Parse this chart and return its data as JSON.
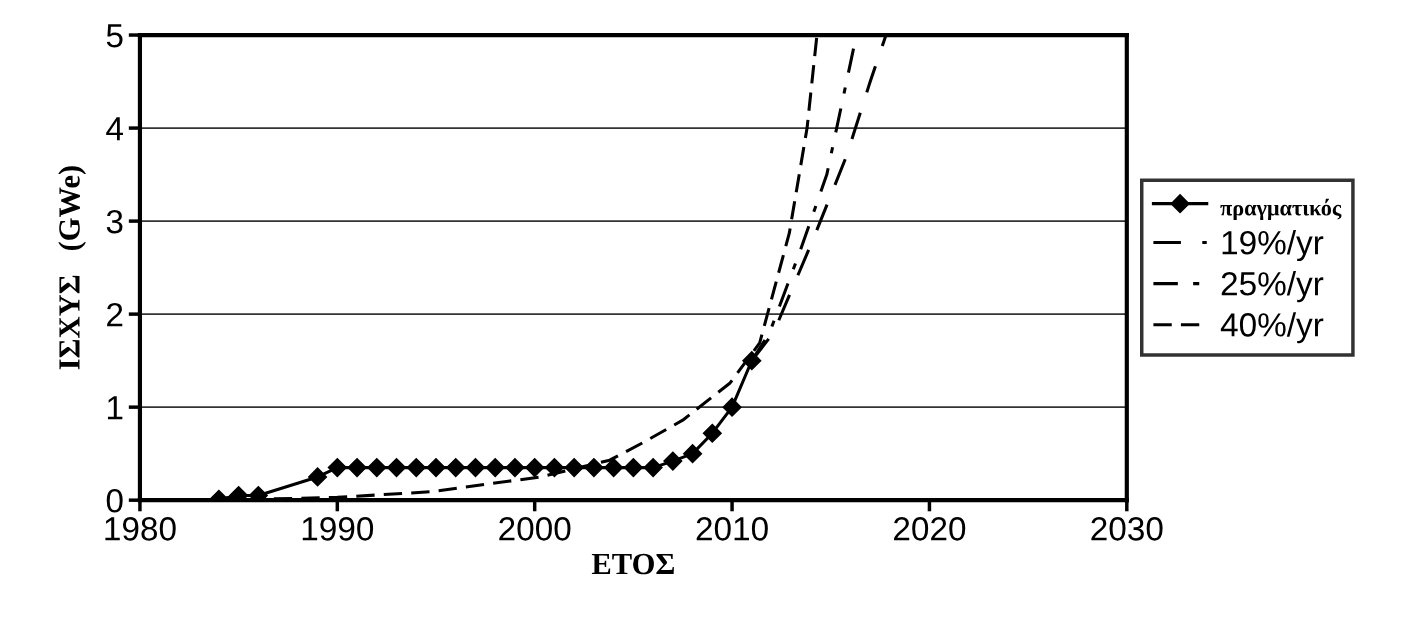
{
  "chart_data": {
    "type": "line",
    "xlabel": "ΕΤΟΣ",
    "ylabel": "ΙΣΧΥΣ   (GWe)",
    "xlim": [
      1980,
      2030
    ],
    "xticks": [
      1980,
      1990,
      2000,
      2010,
      2020,
      2030
    ],
    "ylim": [
      0,
      5
    ],
    "yticks": [
      0,
      1,
      2,
      3,
      4,
      5
    ],
    "grid": "y",
    "legend": "right",
    "series": [
      {
        "name": "πραγματικός",
        "color": "#000000",
        "marker": "diamond",
        "line_style": "solid",
        "x": [
          1984,
          1985,
          1986,
          1989,
          1990,
          1991,
          1992,
          1993,
          1994,
          1995,
          1996,
          1997,
          1998,
          1999,
          2000,
          2001,
          2002,
          2003,
          2004,
          2005,
          2006,
          2007,
          2008,
          2009,
          2010,
          2011
        ],
        "values": [
          0.01,
          0.05,
          0.05,
          0.25,
          0.35,
          0.35,
          0.35,
          0.35,
          0.35,
          0.35,
          0.35,
          0.35,
          0.35,
          0.35,
          0.35,
          0.35,
          0.35,
          0.35,
          0.35,
          0.35,
          0.35,
          0.42,
          0.5,
          0.72,
          1.0,
          1.5
        ]
      },
      {
        "name": "19%/yr",
        "color": "#000000",
        "marker": "none",
        "line_style": "dashed",
        "x": [
          2011,
          2012.1,
          2014.1,
          2015.8,
          2017.0,
          2017.8
        ],
        "values": [
          1.5,
          1.8,
          2.8,
          3.7,
          4.5,
          5.0
        ]
      },
      {
        "name": "25%/yr",
        "color": "#000000",
        "marker": "none",
        "line_style": "dashdot",
        "x": [
          2011,
          2011.9,
          2013.4,
          2014.8,
          2015.6,
          2016.3
        ],
        "values": [
          1.5,
          1.8,
          2.65,
          3.5,
          4.3,
          5.0
        ]
      },
      {
        "name": "40%/yr",
        "color": "#000000",
        "marker": "none",
        "line_style": "densely dashed",
        "x": [
          1984,
          1990,
          1994.7,
          2000.3,
          2003.8,
          2005.5,
          2007.5,
          2009.9,
          2011.4,
          2012.9,
          2013.8,
          2014.3
        ],
        "values": [
          0.0,
          0.03,
          0.09,
          0.25,
          0.43,
          0.62,
          0.86,
          1.26,
          1.69,
          2.87,
          4.0,
          5.0
        ]
      }
    ]
  }
}
